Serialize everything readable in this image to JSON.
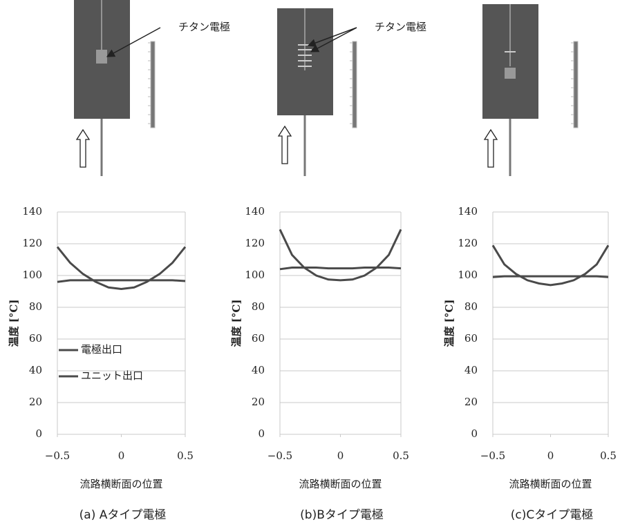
{
  "chart_data": [
    {
      "type": "line",
      "annotation": "チタン電極",
      "x": [
        -0.5,
        -0.4,
        -0.3,
        -0.2,
        -0.1,
        0,
        0.1,
        0.2,
        0.3,
        0.4,
        0.5
      ],
      "series": [
        {
          "name": "電極出口",
          "color": "#4a4a4a",
          "values": [
            118,
            108,
            101,
            96,
            92.5,
            91.5,
            92.5,
            96,
            101,
            108,
            118
          ]
        },
        {
          "name": "ユニット出口",
          "color": "#4a4a4a",
          "values": [
            96,
            97,
            97,
            97,
            97,
            97,
            97,
            97,
            97,
            97,
            96.5
          ]
        }
      ],
      "xlim": [
        -0.5,
        0.5
      ],
      "xticks": [
        {
          "value": -0.5,
          "label": "−0.5"
        },
        0,
        0.5
      ],
      "ylim": [
        0,
        140
      ],
      "yticks": [
        0,
        20,
        40,
        60,
        80,
        100,
        120,
        140
      ],
      "grid": true,
      "legend": "center-left",
      "xlabel": "流路横断面の位置",
      "ylabel": "温度 [°C]",
      "caption": "(a) Aタイプ電極"
    },
    {
      "type": "line",
      "annotation": "チタン電極",
      "x": [
        -0.5,
        -0.4,
        -0.3,
        -0.2,
        -0.1,
        0,
        0.1,
        0.2,
        0.3,
        0.4,
        0.5
      ],
      "series": [
        {
          "color": "#4a4a4a",
          "values": [
            129,
            113,
            105,
            100,
            97.5,
            97,
            97.5,
            100,
            105,
            113,
            129
          ]
        },
        {
          "color": "#4a4a4a",
          "values": [
            104,
            105,
            105,
            105,
            104.5,
            104.5,
            104.5,
            105,
            105,
            105,
            104.5
          ]
        }
      ],
      "xlim": [
        -0.5,
        0.5
      ],
      "xticks": [
        {
          "value": -0.5,
          "label": "−0.5"
        },
        0,
        0.5
      ],
      "ylim": [
        0,
        140
      ],
      "yticks": [
        0,
        20,
        40,
        60,
        80,
        100,
        120,
        140
      ],
      "grid": true,
      "xlabel": "流路横断面の位置",
      "ylabel": "温度 [°C]",
      "caption": "(b)Bタイプ電極"
    },
    {
      "type": "line",
      "x": [
        -0.5,
        -0.4,
        -0.3,
        -0.2,
        -0.1,
        0,
        0.1,
        0.2,
        0.3,
        0.4,
        0.5
      ],
      "series": [
        {
          "color": "#4a4a4a",
          "values": [
            119,
            107,
            101,
            97,
            95,
            94,
            95,
            97,
            101,
            107,
            119
          ]
        },
        {
          "color": "#4a4a4a",
          "values": [
            99,
            99.5,
            99.5,
            99.5,
            99.5,
            99.5,
            99.5,
            99.5,
            99.5,
            99.5,
            99
          ]
        }
      ],
      "xlim": [
        -0.5,
        0.5
      ],
      "xticks": [
        {
          "value": -0.5,
          "label": "−0.5"
        },
        0,
        0.5
      ],
      "ylim": [
        0,
        140
      ],
      "yticks": [
        0,
        20,
        40,
        60,
        80,
        100,
        120,
        140
      ],
      "grid": true,
      "xlabel": "流路横断面の位置",
      "ylabel": "温度 [°C]",
      "caption": "(c)Cタイプ電極"
    }
  ]
}
